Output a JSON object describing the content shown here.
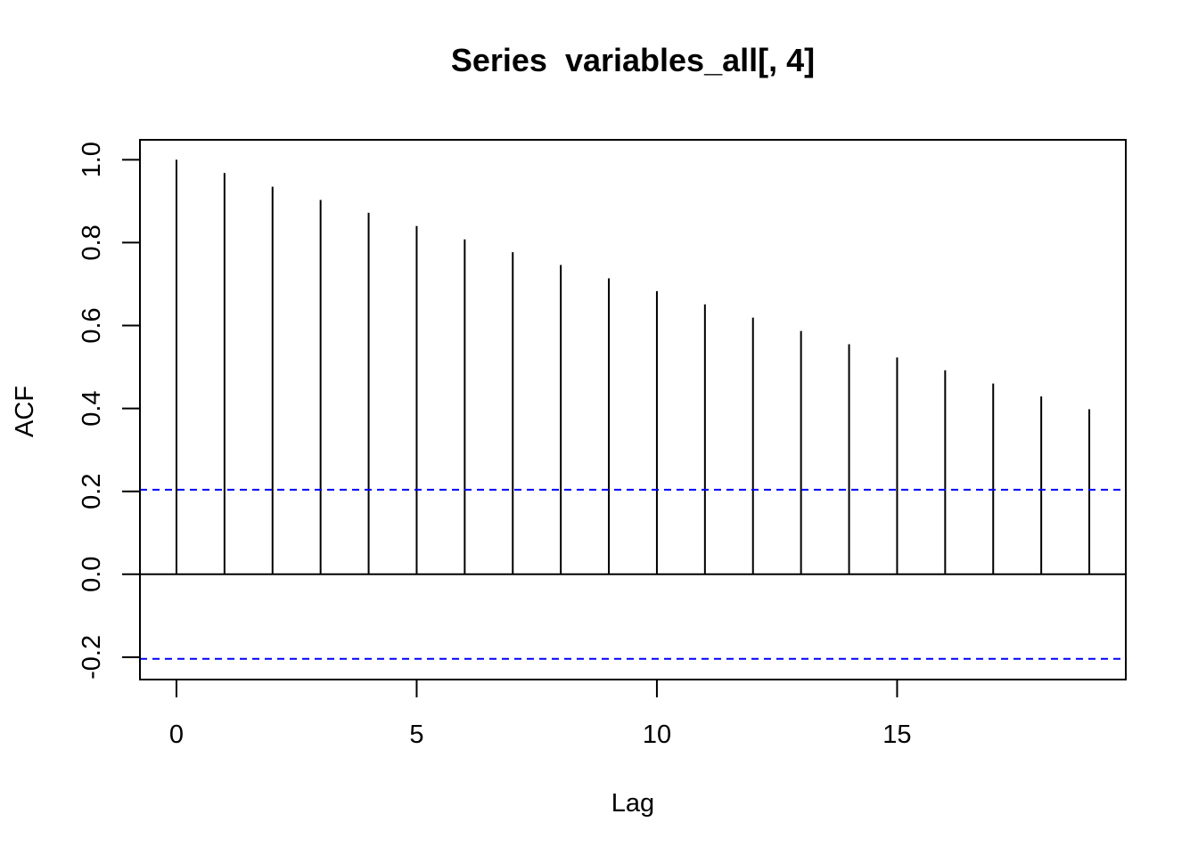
{
  "chart_data": {
    "type": "bar",
    "title": "Series  variables_all[, 4]",
    "xlabel": "Lag",
    "ylabel": "ACF",
    "x": [
      0,
      1,
      2,
      3,
      4,
      5,
      6,
      7,
      8,
      9,
      10,
      11,
      12,
      13,
      14,
      15,
      16,
      17,
      18,
      19
    ],
    "values": [
      1.0,
      0.968,
      0.935,
      0.903,
      0.872,
      0.84,
      0.808,
      0.777,
      0.746,
      0.714,
      0.683,
      0.651,
      0.619,
      0.587,
      0.555,
      0.523,
      0.492,
      0.46,
      0.429,
      0.398
    ],
    "confidence_bound": 0.204,
    "xlim": [
      -0.76,
      19.76
    ],
    "ylim": [
      -0.254,
      1.048
    ],
    "x_ticks": [
      0,
      5,
      10,
      15
    ],
    "x_tick_labels": [
      "0",
      "5",
      "10",
      "15"
    ],
    "y_ticks": [
      -0.2,
      0.0,
      0.2,
      0.4,
      0.6,
      0.8,
      1.0
    ],
    "y_tick_labels": [
      "-0.2",
      "0.0",
      "0.2",
      "0.4",
      "0.6",
      "0.8",
      "1.0"
    ],
    "grid": false,
    "legend": "none",
    "colors": {
      "bars": "#000000",
      "zero_line": "#000000",
      "confidence_lines": "#0000ff",
      "frame": "#000000"
    }
  }
}
